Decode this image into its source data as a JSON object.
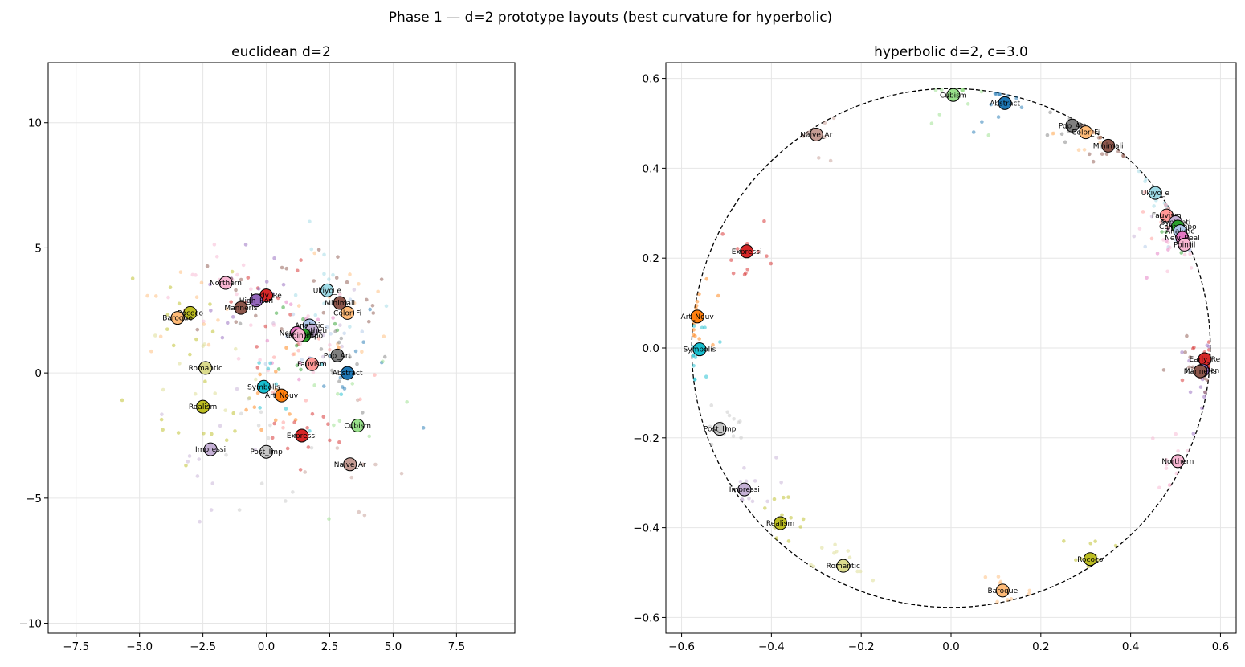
{
  "chart_data": {
    "suptitle": "Phase 1 — d=2 prototype layouts (best curvature for hyperbolic)",
    "panels": [
      {
        "id": "euclidean",
        "type": "scatter",
        "title": "euclidean d=2",
        "xlim": [
          -8.6,
          9.8
        ],
        "ylim": [
          -10.4,
          12.4
        ],
        "xticks": [
          -7.5,
          -5.0,
          -2.5,
          0.0,
          2.5,
          5.0,
          7.5
        ],
        "xtick_labels": [
          "−7.5",
          "−5.0",
          "−2.5",
          "0.0",
          "2.5",
          "5.0",
          "7.5"
        ],
        "yticks": [
          -10,
          -5,
          0,
          5,
          10
        ],
        "ytick_labels": [
          "−10",
          "−5",
          "0",
          "5",
          "10"
        ],
        "grid": true,
        "circle": null,
        "prototypes": [
          {
            "label": "Northern",
            "x": -1.6,
            "y": 3.6,
            "color": "#f7b6d2"
          },
          {
            "label": "Early_Re",
            "x": 0.0,
            "y": 3.1,
            "color": "#d62728"
          },
          {
            "label": "High_Ren",
            "x": -0.4,
            "y": 2.9,
            "color": "#9467bd"
          },
          {
            "label": "Mannerism",
            "x": -1.0,
            "y": 2.6,
            "color": "#8c564b"
          },
          {
            "label": "Rococo",
            "x": -3.0,
            "y": 2.4,
            "color": "#bcbd22"
          },
          {
            "label": "Baroque",
            "x": -3.5,
            "y": 2.2,
            "color": "#ffbb78"
          },
          {
            "label": "Ukiyo_e",
            "x": 2.4,
            "y": 3.3,
            "color": "#9edae5"
          },
          {
            "label": "Minimali",
            "x": 2.9,
            "y": 2.8,
            "color": "#8c564b"
          },
          {
            "label": "Color_Fi",
            "x": 3.2,
            "y": 2.4,
            "color": "#ffbb78"
          },
          {
            "label": "Analytic",
            "x": 1.7,
            "y": 1.9,
            "color": "#aec7e8"
          },
          {
            "label": "Syntheti",
            "x": 1.8,
            "y": 1.7,
            "color": "#c5b0d5"
          },
          {
            "label": "New_Real",
            "x": 1.2,
            "y": 1.6,
            "color": "#e377c2"
          },
          {
            "label": "Contempo",
            "x": 1.5,
            "y": 1.5,
            "color": "#2ca02c"
          },
          {
            "label": "Pointil",
            "x": 1.3,
            "y": 1.5,
            "color": "#f7b6d2"
          },
          {
            "label": "Pop_Art",
            "x": 2.8,
            "y": 0.7,
            "color": "#7f7f7f"
          },
          {
            "label": "Fauvism",
            "x": 1.8,
            "y": 0.35,
            "color": "#ff9896"
          },
          {
            "label": "Abstract",
            "x": 3.2,
            "y": 0.0,
            "color": "#1f77b4"
          },
          {
            "label": "Romantic",
            "x": -2.4,
            "y": 0.2,
            "color": "#dbdb8d"
          },
          {
            "label": "Symbolis",
            "x": -0.1,
            "y": -0.55,
            "color": "#17becf"
          },
          {
            "label": "Art_Nouv",
            "x": 0.6,
            "y": -0.9,
            "color": "#ff7f0e"
          },
          {
            "label": "Realism",
            "x": -2.5,
            "y": -1.35,
            "color": "#bcbd22"
          },
          {
            "label": "Cubism",
            "x": 3.6,
            "y": -2.1,
            "color": "#98df8a"
          },
          {
            "label": "Expressi",
            "x": 1.4,
            "y": -2.5,
            "color": "#d62728"
          },
          {
            "label": "Impressi",
            "x": -2.2,
            "y": -3.05,
            "color": "#c5b0d5"
          },
          {
            "label": "Post_Imp",
            "x": 0.0,
            "y": -3.15,
            "color": "#c7c7c7"
          },
          {
            "label": "Naive_Ar",
            "x": 3.3,
            "y": -3.65,
            "color": "#c49c94"
          }
        ]
      },
      {
        "id": "hyperbolic",
        "type": "scatter",
        "title": "hyperbolic d=2, c=3.0",
        "xlim": [
          -0.635,
          0.635
        ],
        "ylim": [
          -0.635,
          0.635
        ],
        "xticks": [
          -0.6,
          -0.4,
          -0.2,
          0.0,
          0.2,
          0.4,
          0.6
        ],
        "xtick_labels": [
          "−0.6",
          "−0.4",
          "−0.2",
          "0.0",
          "0.2",
          "0.4",
          "0.6"
        ],
        "yticks": [
          -0.6,
          -0.4,
          -0.2,
          0.0,
          0.2,
          0.4,
          0.6
        ],
        "ytick_labels": [
          "−0.6",
          "−0.4",
          "−0.2",
          "0.0",
          "0.2",
          "0.4",
          "0.6"
        ],
        "grid": true,
        "circle": {
          "radius": 0.5774,
          "style": "dashed"
        },
        "prototypes": [
          {
            "label": "Cubism",
            "x": 0.005,
            "y": 0.563,
            "color": "#98df8a"
          },
          {
            "label": "Abstract",
            "x": 0.12,
            "y": 0.545,
            "color": "#1f77b4"
          },
          {
            "label": "Pop_Art",
            "x": 0.27,
            "y": 0.495,
            "color": "#7f7f7f"
          },
          {
            "label": "Color_Fi",
            "x": 0.3,
            "y": 0.48,
            "color": "#ffbb78"
          },
          {
            "label": "Minimali",
            "x": 0.35,
            "y": 0.45,
            "color": "#8c564b"
          },
          {
            "label": "Naive_Ar",
            "x": -0.3,
            "y": 0.475,
            "color": "#c49c94"
          },
          {
            "label": "Ukiyo_e",
            "x": 0.455,
            "y": 0.345,
            "color": "#9edae5"
          },
          {
            "label": "Fauvism",
            "x": 0.48,
            "y": 0.295,
            "color": "#ff9896"
          },
          {
            "label": "Syntheti",
            "x": 0.5,
            "y": 0.28,
            "color": "#c5b0d5"
          },
          {
            "label": "Contempo",
            "x": 0.505,
            "y": 0.27,
            "color": "#2ca02c"
          },
          {
            "label": "Analytic",
            "x": 0.51,
            "y": 0.26,
            "color": "#aec7e8"
          },
          {
            "label": "New_Real",
            "x": 0.515,
            "y": 0.245,
            "color": "#e377c2"
          },
          {
            "label": "Pointil",
            "x": 0.52,
            "y": 0.23,
            "color": "#f7b6d2"
          },
          {
            "label": "Expressi",
            "x": -0.455,
            "y": 0.215,
            "color": "#d62728"
          },
          {
            "label": "Art_Nouv",
            "x": -0.565,
            "y": 0.07,
            "color": "#ff7f0e"
          },
          {
            "label": "Symbolis",
            "x": -0.56,
            "y": -0.003,
            "color": "#17becf"
          },
          {
            "label": "Early_Re",
            "x": 0.565,
            "y": -0.025,
            "color": "#d62728"
          },
          {
            "label": "High_Ren",
            "x": 0.56,
            "y": -0.05,
            "color": "#9467bd"
          },
          {
            "label": "Mannerism",
            "x": 0.555,
            "y": -0.052,
            "color": "#8c564b"
          },
          {
            "label": "Post_Imp",
            "x": -0.515,
            "y": -0.18,
            "color": "#c7c7c7"
          },
          {
            "label": "Northern",
            "x": 0.505,
            "y": -0.252,
            "color": "#f7b6d2"
          },
          {
            "label": "Impressi",
            "x": -0.46,
            "y": -0.315,
            "color": "#c5b0d5"
          },
          {
            "label": "Realism",
            "x": -0.38,
            "y": -0.39,
            "color": "#bcbd22"
          },
          {
            "label": "Romantic",
            "x": -0.24,
            "y": -0.485,
            "color": "#dbdb8d"
          },
          {
            "label": "Rococo",
            "x": 0.31,
            "y": -0.47,
            "color": "#bcbd22"
          },
          {
            "label": "Baroque",
            "x": 0.115,
            "y": -0.54,
            "color": "#ffbb78"
          }
        ]
      }
    ]
  }
}
